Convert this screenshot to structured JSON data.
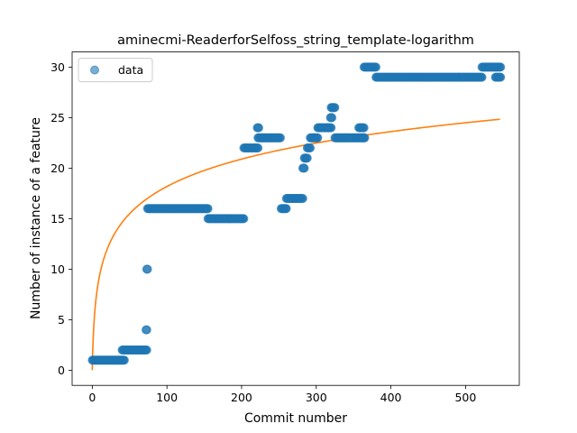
{
  "chart_data": {
    "type": "scatter",
    "title": "aminecmi-ReaderforSelfoss_string_template-logarithm",
    "xlabel": "Commit number",
    "ylabel": "Number of instance of a feature",
    "xlim": [
      -27,
      572
    ],
    "ylim": [
      -1.5,
      31.5
    ],
    "xticks": [
      0,
      100,
      200,
      300,
      400,
      500
    ],
    "yticks": [
      0,
      5,
      10,
      15,
      20,
      25,
      30
    ],
    "grid": false,
    "legend": {
      "position": "top-left",
      "entries": [
        "data"
      ]
    },
    "colors": {
      "data": "#1f77b4",
      "fit": "#ff7f0e"
    },
    "series": [
      {
        "name": "data",
        "kind": "scatter",
        "segments": [
          {
            "x_start": 0,
            "x_end": 43,
            "y": 1
          },
          {
            "x_start": 40,
            "x_end": 73,
            "y": 2
          },
          {
            "x_start": 72,
            "x_end": 73,
            "y": 4
          },
          {
            "x_start": 73,
            "x_end": 74,
            "y": 10
          },
          {
            "x_start": 74,
            "x_end": 155,
            "y": 16
          },
          {
            "x_start": 155,
            "x_end": 203,
            "y": 15
          },
          {
            "x_start": 203,
            "x_end": 222,
            "y": 22
          },
          {
            "x_start": 221,
            "x_end": 223,
            "y": 24
          },
          {
            "x_start": 222,
            "x_end": 252,
            "y": 23
          },
          {
            "x_start": 253,
            "x_end": 260,
            "y": 16
          },
          {
            "x_start": 260,
            "x_end": 282,
            "y": 17
          },
          {
            "x_start": 282,
            "x_end": 284,
            "y": 20
          },
          {
            "x_start": 284,
            "x_end": 288,
            "y": 21
          },
          {
            "x_start": 288,
            "x_end": 292,
            "y": 22
          },
          {
            "x_start": 292,
            "x_end": 302,
            "y": 23
          },
          {
            "x_start": 302,
            "x_end": 320,
            "y": 24
          },
          {
            "x_start": 319,
            "x_end": 321,
            "y": 25
          },
          {
            "x_start": 320,
            "x_end": 325,
            "y": 26
          },
          {
            "x_start": 325,
            "x_end": 363,
            "y": 23
          },
          {
            "x_start": 357,
            "x_end": 364,
            "y": 24
          },
          {
            "x_start": 363,
            "x_end": 365,
            "y": 23
          },
          {
            "x_start": 364,
            "x_end": 380,
            "y": 30
          },
          {
            "x_start": 380,
            "x_end": 522,
            "y": 29
          },
          {
            "x_start": 522,
            "x_end": 547,
            "y": 30
          },
          {
            "x_start": 540,
            "x_end": 547,
            "y": 29
          }
        ]
      },
      {
        "name": "fit",
        "kind": "line",
        "model": "logarithmic",
        "a": 0.0,
        "b": 3.94,
        "x_range": [
          0,
          547
        ]
      }
    ]
  }
}
